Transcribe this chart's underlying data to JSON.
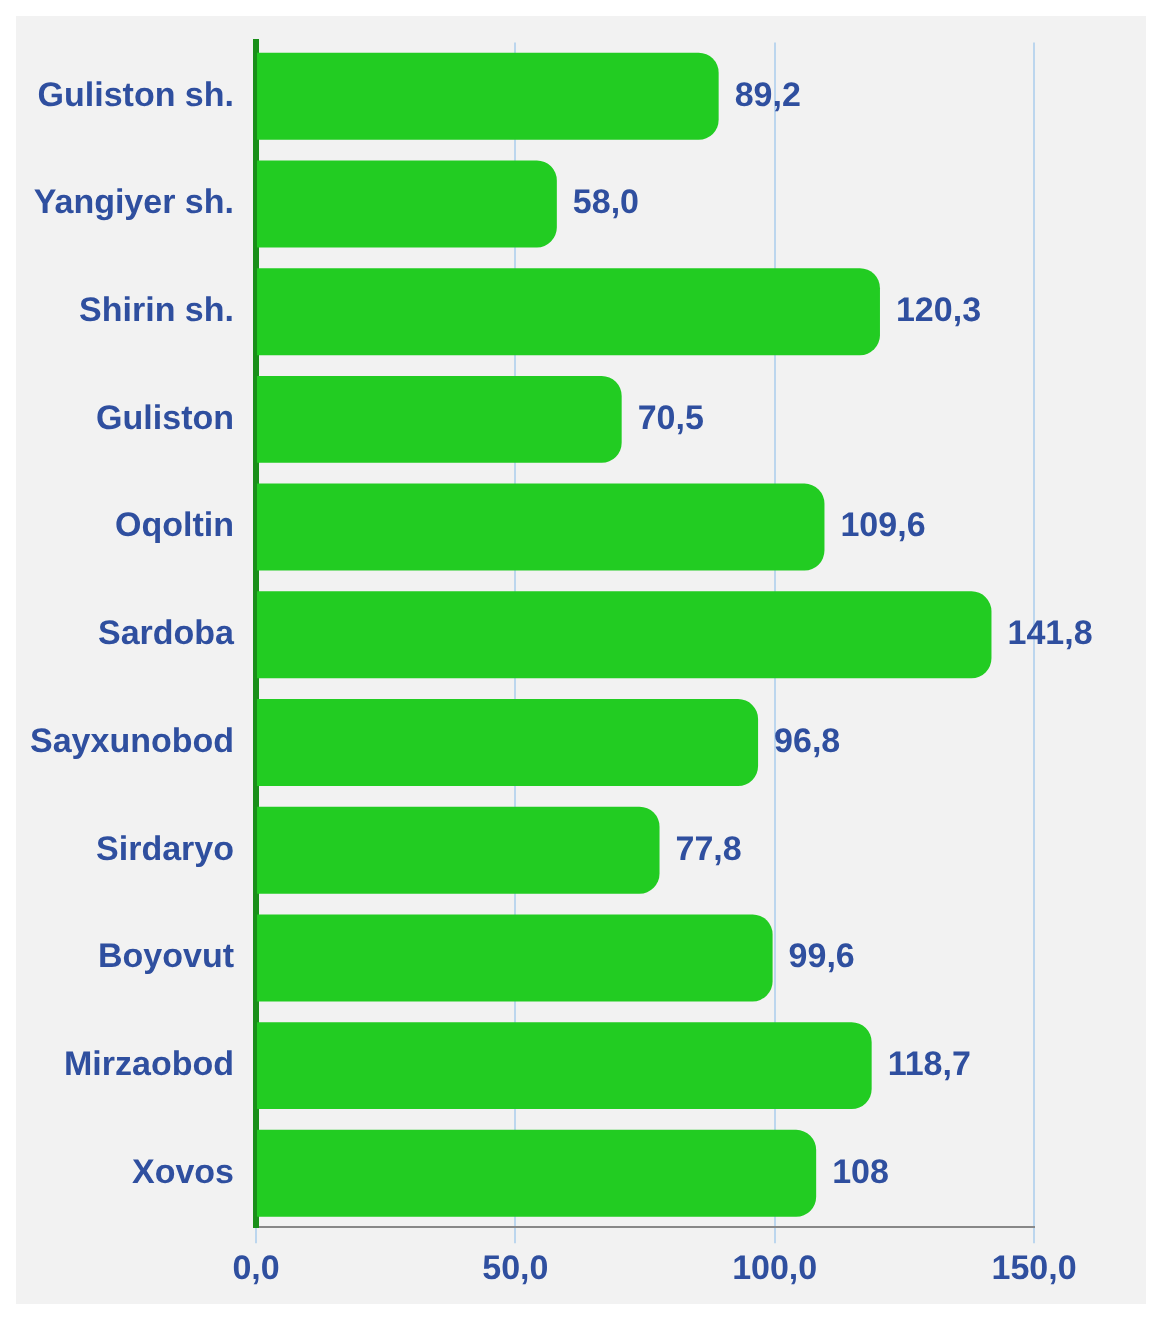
{
  "chart_data": {
    "type": "bar",
    "orientation": "horizontal",
    "categories": [
      "Guliston sh.",
      "Yangiyer sh.",
      "Shirin sh.",
      "Guliston",
      "Oqoltin",
      "Sardoba",
      "Sayxunobod",
      "Sirdaryo",
      "Boyovut",
      "Mirzaobod",
      "Xovos"
    ],
    "values": [
      89.2,
      58.0,
      120.3,
      70.5,
      109.6,
      141.8,
      96.8,
      77.8,
      99.6,
      118.7,
      108
    ],
    "value_labels": [
      "89,2",
      "58,0",
      "120,3",
      "70,5",
      "109,6",
      "141,8",
      "96,8",
      "77,8",
      "99,6",
      "118,7",
      "108"
    ],
    "color": "#22cc22",
    "xlim": [
      0,
      150
    ],
    "xticks": [
      {
        "value": 0,
        "label": "0,0"
      },
      {
        "value": 50,
        "label": "50,0"
      },
      {
        "value": 100,
        "label": "100,0"
      },
      {
        "value": 150,
        "label": "150,0"
      }
    ],
    "grid": "x"
  }
}
